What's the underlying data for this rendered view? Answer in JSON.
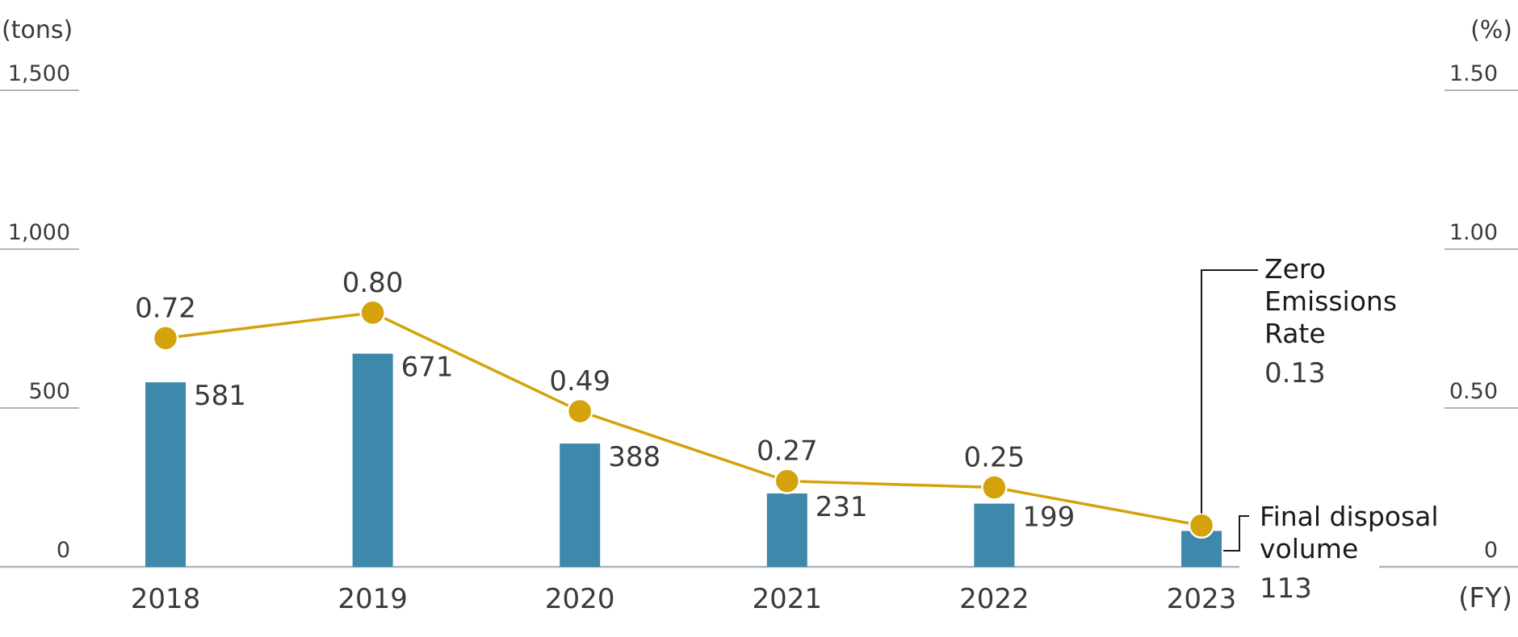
{
  "chart_data": {
    "type": "bar",
    "categories": [
      "2018",
      "2019",
      "2020",
      "2021",
      "2022",
      "2023"
    ],
    "series": [
      {
        "name": "Final disposal volume",
        "type": "bar",
        "axis": "left",
        "values": [
          581,
          671,
          388,
          231,
          199,
          113
        ],
        "labels": [
          "581",
          "671",
          "388",
          "231",
          "199",
          "113"
        ]
      },
      {
        "name": "Zero Emissions Rate",
        "type": "line",
        "axis": "right",
        "values": [
          0.72,
          0.8,
          0.49,
          0.27,
          0.25,
          0.13
        ],
        "labels": [
          "0.72",
          "0.80",
          "0.49",
          "0.27",
          "0.25",
          "0.13"
        ]
      }
    ],
    "y_left": {
      "unit": "(tons)",
      "ylim": [
        0,
        1500
      ],
      "ticks": [
        0,
        500,
        1000,
        1500
      ],
      "tick_labels": [
        "0",
        "500",
        "1,000",
        "1,500"
      ]
    },
    "y_right": {
      "unit": "(%)",
      "ylim": [
        0,
        1.5
      ],
      "ticks": [
        0,
        0.5,
        1.0,
        1.5
      ],
      "tick_labels": [
        "0",
        "0.50",
        "1.00",
        "1.50"
      ]
    },
    "x_unit": "(FY)",
    "legend": {
      "line_label_lines": [
        "Zero",
        "Emissions",
        "Rate"
      ],
      "bar_label_lines": [
        "Final disposal",
        "volume"
      ],
      "placement": "right, callouts at last point"
    },
    "grid": false,
    "colors": {
      "bar": "#3d88ab",
      "line": "#d4a20a",
      "axis": "#a9b6c2"
    }
  }
}
